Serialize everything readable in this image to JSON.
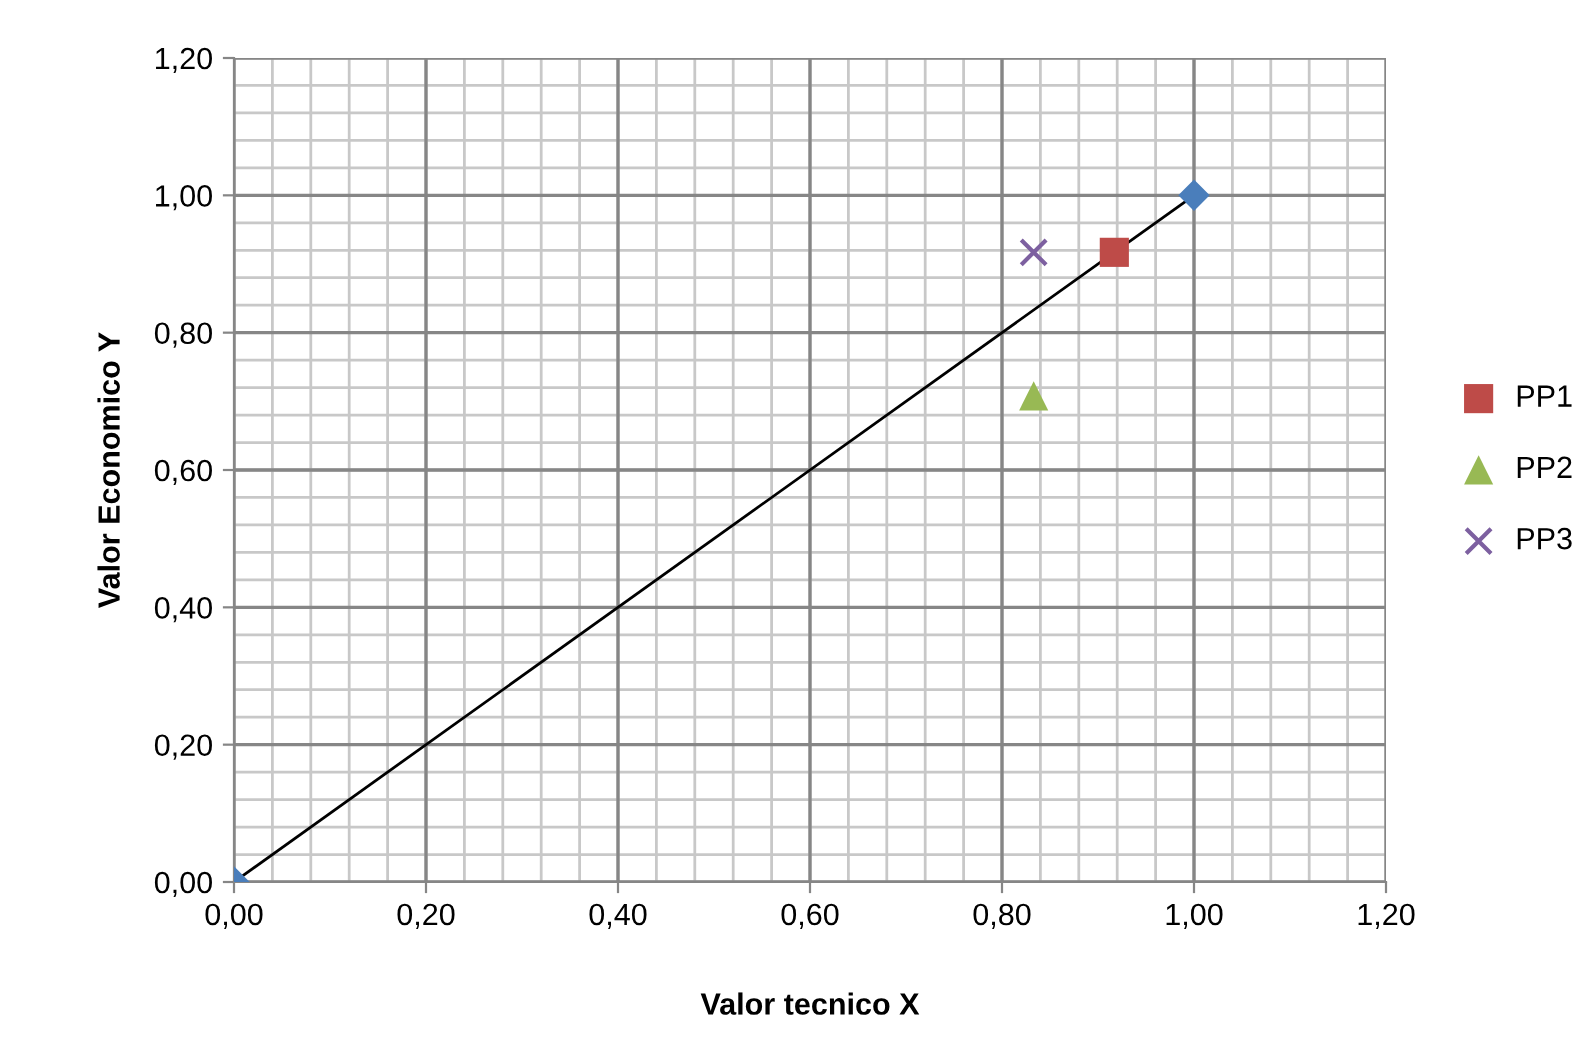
{
  "chart_data": {
    "type": "scatter",
    "xlabel": "Valor tecnico X",
    "ylabel": "Valor Economico Y",
    "xlim": [
      0,
      1.2
    ],
    "ylim": [
      0,
      1.2
    ],
    "xticks": [
      {
        "value": 0,
        "label": "0,00"
      },
      {
        "value": 0.2,
        "label": "0,20"
      },
      {
        "value": 0.4,
        "label": "0,40"
      },
      {
        "value": 0.6,
        "label": "0,60"
      },
      {
        "value": 0.8,
        "label": "0,80"
      },
      {
        "value": 1.0,
        "label": "1,00"
      },
      {
        "value": 1.2,
        "label": "1,20"
      }
    ],
    "yticks": [
      {
        "value": 0,
        "label": "0,00"
      },
      {
        "value": 0.2,
        "label": "0,20"
      },
      {
        "value": 0.4,
        "label": "0,40"
      },
      {
        "value": 0.6,
        "label": "0,60"
      },
      {
        "value": 0.8,
        "label": "0,80"
      },
      {
        "value": 1.0,
        "label": "1,00"
      },
      {
        "value": 1.2,
        "label": "1,20"
      }
    ],
    "grid": true,
    "legend": "right",
    "series": [
      {
        "type": "line",
        "marker": "diamond",
        "color": "#4a7ebb",
        "x": [
          0,
          1
        ],
        "values": [
          0,
          1
        ]
      },
      {
        "name": "PP1",
        "marker": "square",
        "color": "#be4b48",
        "x": [
          0.917
        ],
        "values": [
          0.917
        ]
      },
      {
        "name": "PP2",
        "marker": "triangle",
        "color": "#98b954",
        "x": [
          0.833
        ],
        "values": [
          0.708
        ]
      },
      {
        "name": "PP3",
        "marker": "cross",
        "color": "#7d60a0",
        "x": [
          0.833
        ],
        "values": [
          0.917
        ]
      }
    ]
  }
}
